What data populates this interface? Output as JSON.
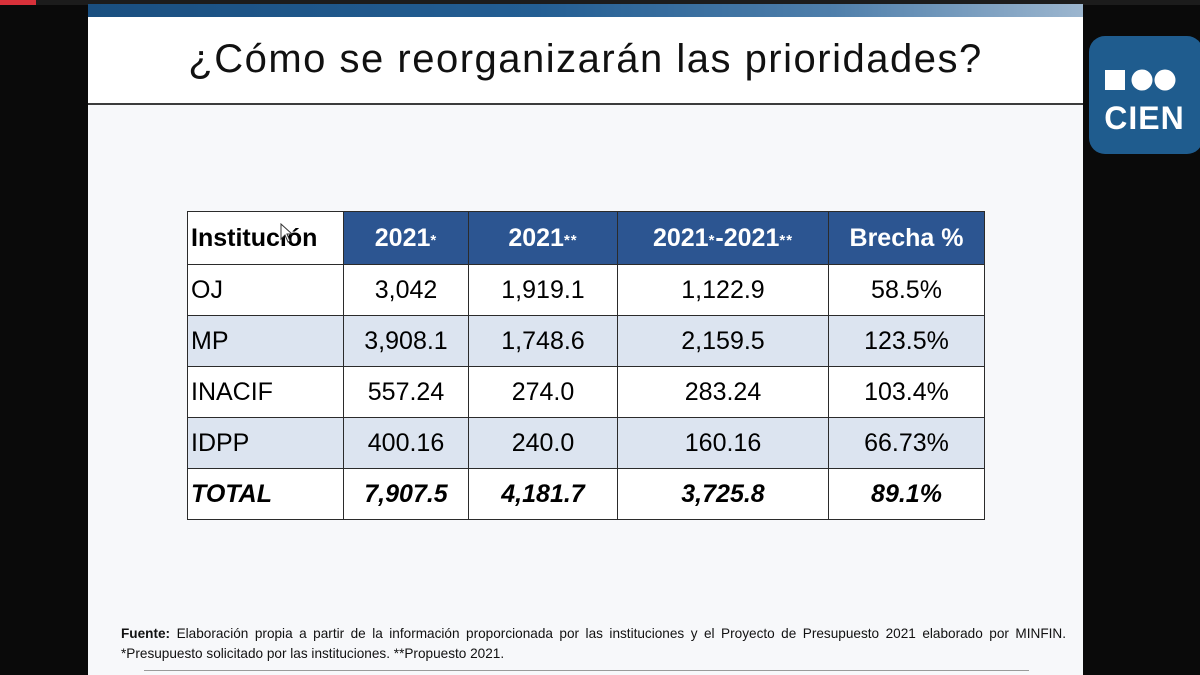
{
  "slide": {
    "title": "¿Cómo se reorganizarán las prioridades?"
  },
  "table": {
    "headers": {
      "institucion": "Institución",
      "col_2021_a": "2021",
      "col_2021_a_mark": "*",
      "col_2021_b": "2021",
      "col_2021_b_mark": "**",
      "diff_prefix": "2021",
      "diff_mark1": "*",
      "diff_mid": "-2021",
      "diff_mark2": "**",
      "brecha": "Brecha %"
    },
    "rows": [
      {
        "institucion": "OJ",
        "solicitado": "3,042",
        "propuesto": "1,919.1",
        "diferencia": "1,122.9",
        "brecha": "58.5%"
      },
      {
        "institucion": "MP",
        "solicitado": "3,908.1",
        "propuesto": "1,748.6",
        "diferencia": "2,159.5",
        "brecha": "123.5%"
      },
      {
        "institucion": "INACIF",
        "solicitado": "557.24",
        "propuesto": "274.0",
        "diferencia": "283.24",
        "brecha": "103.4%"
      },
      {
        "institucion": "IDPP",
        "solicitado": "400.16",
        "propuesto": "240.0",
        "diferencia": "160.16",
        "brecha": "66.73%"
      }
    ],
    "total": {
      "institucion": "TOTAL",
      "solicitado": "7,907.5",
      "propuesto": "4,181.7",
      "diferencia": "3,725.8",
      "brecha": "89.1%"
    }
  },
  "footnote": {
    "label": "Fuente:",
    "text": " Elaboración propia a partir de la información proporcionada por las instituciones y el Proyecto de Presupuesto 2021 elaborado por MINFIN. *Presupuesto solicitado por las instituciones. **Propuesto 2021."
  },
  "logo": {
    "text": "CIEN",
    "color": "#1f5c8e"
  },
  "colors": {
    "header_blue": "#2c5591",
    "row_alt_blue": "#dce4f0",
    "slide_bar": "#1a4f80"
  }
}
